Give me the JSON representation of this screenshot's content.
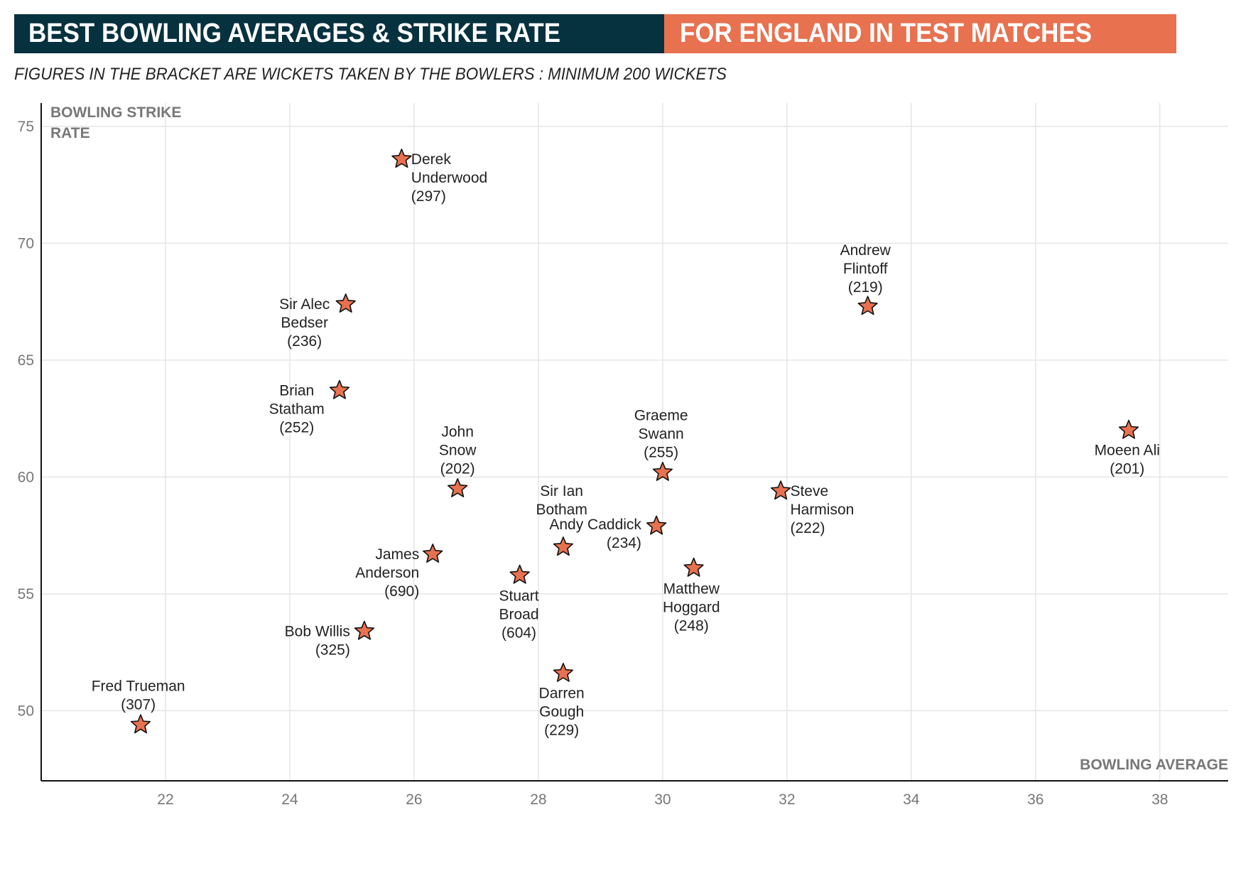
{
  "title_part1": "BEST BOWLING AVERAGES & STRIKE RATE",
  "title_part2": "FOR ENGLAND IN TEST MATCHES",
  "subtitle": "FIGURES IN THE BRACKET ARE WICKETS TAKEN BY THE BOWLERS : MINIMUM 200 WICKETS",
  "colors": {
    "title_dark": "#06313f",
    "title_accent": "#e8714f",
    "marker_fill": "#e8714f",
    "marker_stroke": "#111111",
    "grid": "#e5e5e5"
  },
  "chart_data": {
    "type": "scatter",
    "marker": "star",
    "xlabel": "BOWLING AVERAGE",
    "ylabel_lines": [
      "BOWLING STRIKE",
      "RATE"
    ],
    "xlim": [
      20,
      39.1
    ],
    "ylim": [
      47,
      76
    ],
    "xticks": [
      22,
      24,
      26,
      28,
      30,
      32,
      34,
      36,
      38
    ],
    "yticks": [
      50,
      55,
      60,
      65,
      70,
      75
    ],
    "grid": true,
    "points": [
      {
        "name": "Fred Trueman",
        "x": 21.6,
        "y": 49.4,
        "wickets": "(307)",
        "label_lines": [
          "Fred Trueman",
          "(307)"
        ]
      },
      {
        "name": "Bob Willis",
        "x": 25.2,
        "y": 53.4,
        "wickets": "(325)",
        "label_lines": [
          "Bob Willis",
          "(325)"
        ]
      },
      {
        "name": "James Anderson",
        "x": 26.3,
        "y": 56.7,
        "wickets": "(690)",
        "label_lines": [
          "James",
          "Anderson",
          "(690)"
        ]
      },
      {
        "name": "Stuart Broad",
        "x": 27.7,
        "y": 55.8,
        "wickets": "(604)",
        "label_lines": [
          "Stuart",
          "Broad",
          "(604)"
        ]
      },
      {
        "name": "Darren Gough",
        "x": 28.4,
        "y": 51.6,
        "wickets": "(229)",
        "label_lines": [
          "Darren",
          "Gough",
          "(229)"
        ]
      },
      {
        "name": "Sir Ian Botham",
        "x": 28.4,
        "y": 57.0,
        "label_lines": [
          "Sir Ian",
          "Botham"
        ]
      },
      {
        "name": "Andy Caddick",
        "x": 29.9,
        "y": 57.9,
        "wickets": "(234)",
        "label_lines": [
          "Andy Caddick",
          "(234)"
        ]
      },
      {
        "name": "Matthew Hoggard",
        "x": 30.5,
        "y": 56.1,
        "wickets": "(248)",
        "label_lines": [
          "Matthew",
          "Hoggard",
          "(248)"
        ]
      },
      {
        "name": "Graeme Swann",
        "x": 30.0,
        "y": 60.2,
        "wickets": "(255)",
        "label_lines": [
          "Graeme",
          "Swann",
          "(255)"
        ]
      },
      {
        "name": "John Snow",
        "x": 26.7,
        "y": 59.5,
        "wickets": "(202)",
        "label_lines": [
          "John",
          "Snow",
          "(202)"
        ]
      },
      {
        "name": "Brian Statham",
        "x": 24.8,
        "y": 63.7,
        "wickets": "(252)",
        "label_lines": [
          "Brian",
          "Statham",
          "(252)"
        ]
      },
      {
        "name": "Sir Alec Bedser",
        "x": 24.9,
        "y": 67.4,
        "wickets": "(236)",
        "label_lines": [
          "Sir Alec",
          "Bedser",
          "(236)"
        ]
      },
      {
        "name": "Derek Underwood",
        "x": 25.8,
        "y": 73.6,
        "wickets": "(297)",
        "label_lines": [
          "Derek",
          "Underwood",
          "(297)"
        ]
      },
      {
        "name": "Andrew Flintoff",
        "x": 33.3,
        "y": 67.3,
        "wickets": "(219)",
        "label_lines": [
          "Andrew",
          "Flintoff",
          "(219)"
        ]
      },
      {
        "name": "Steve Harmison",
        "x": 31.9,
        "y": 59.4,
        "wickets": "(222)",
        "label_lines": [
          "Steve",
          "Harmison",
          "(222)"
        ]
      },
      {
        "name": "Moeen Ali",
        "x": 37.5,
        "y": 62.0,
        "wickets": "(201)",
        "label_lines": [
          "Moeen Ali",
          "(201)"
        ]
      }
    ]
  }
}
